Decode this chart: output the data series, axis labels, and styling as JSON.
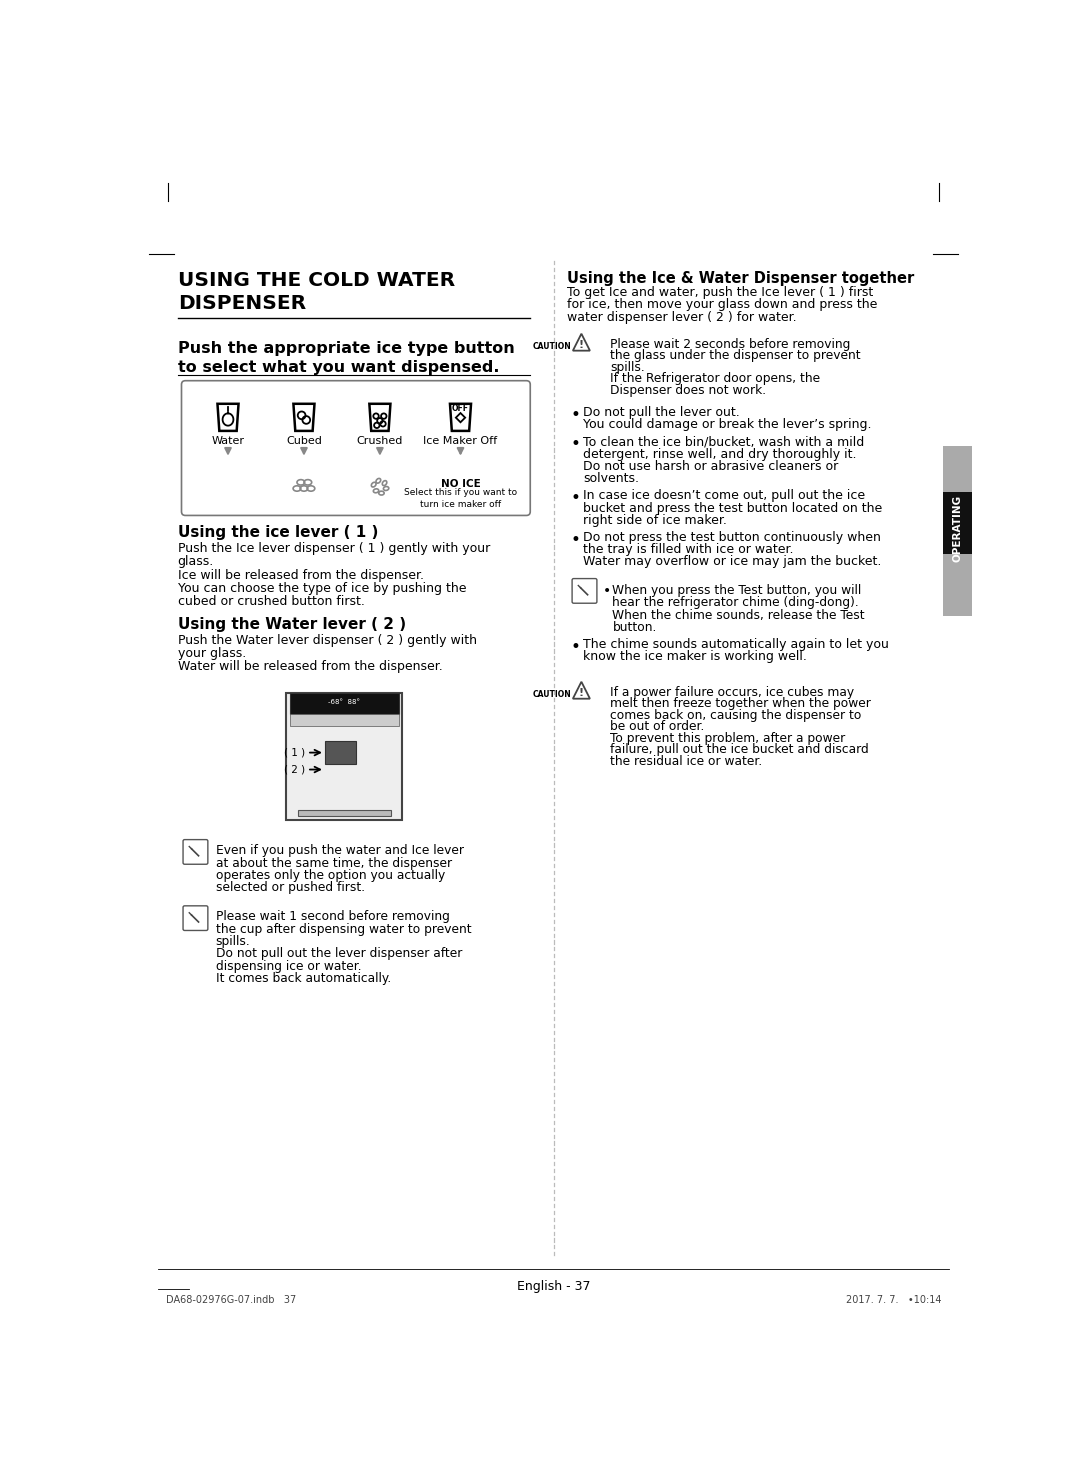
{
  "bg_color": "#ffffff",
  "left_title_line1": "USING THE COLD WATER",
  "left_title_line2": "DISPENSER",
  "push_heading_line1": "Push the appropriate ice type button",
  "push_heading_line2": "to select what you want dispensed.",
  "ice_labels": [
    "Water",
    "Cubed",
    "Crushed",
    "Ice Maker Off"
  ],
  "no_ice_bold": "NO ICE",
  "no_ice_text": "Select this if you want to\nturn ice maker off",
  "ice_lever_heading": "Using the ice lever ( 1 )",
  "ice_lever_body_lines": [
    "Push the Ice lever dispenser ( 1 ) gently with your",
    "glass.",
    "Ice will be released from the dispenser.",
    "You can choose the type of ice by pushing the",
    "cubed or crushed button first."
  ],
  "water_lever_heading": "Using the Water lever ( 2 )",
  "water_lever_body_lines": [
    "Push the Water lever dispenser ( 2 ) gently with",
    "your glass.",
    "Water will be released from the dispenser."
  ],
  "note1_body_lines": [
    "Even if you push the water and Ice lever",
    "at about the same time, the dispenser",
    "operates only the option you actually",
    "selected or pushed first."
  ],
  "note2_body_lines": [
    "Please wait 1 second before removing",
    "the cup after dispensing water to prevent",
    "spills.",
    "Do not pull out the lever dispenser after",
    "dispensing ice or water.",
    "It comes back automatically."
  ],
  "right_title": "Using the Ice & Water Dispenser together",
  "right_title_body_lines": [
    "To get Ice and water, push the Ice lever ( 1 ) first",
    "for ice, then move your glass down and press the",
    "water dispenser lever ( 2 ) for water."
  ],
  "caution1_body_lines": [
    "Please wait 2 seconds before removing",
    "the glass under the dispenser to prevent",
    "spills.",
    "If the Refrigerator door opens, the",
    "Dispenser does not work."
  ],
  "bullet1_lines": [
    "Do not pull the lever out.",
    "You could damage or break the lever’s spring."
  ],
  "bullet2_lines": [
    "To clean the ice bin/bucket, wash with a mild",
    "detergent, rinse well, and dry thoroughly it.",
    "Do not use harsh or abrasive cleaners or",
    "solvents."
  ],
  "bullet3_lines": [
    "In case ice doesn’t come out, pull out the ice",
    "bucket and press the test button located on the",
    "right side of ice maker."
  ],
  "bullet4_lines": [
    "Do not press the test button continuously when",
    "the tray is filled with ice or water.",
    "Water may overflow or ice may jam the bucket."
  ],
  "note3_bullet_lines": [
    "When you press the Test button, you will",
    "hear the refrigerator chime (ding-dong).",
    "When the chime sounds, release the Test",
    "button."
  ],
  "bullet5_lines": [
    "The chime sounds automatically again to let you",
    "know the ice maker is working well."
  ],
  "caution2_body_lines": [
    "If a power failure occurs, ice cubes may",
    "melt then freeze together when the power",
    "comes back on, causing the dispenser to",
    "be out of order.",
    "To prevent this problem, after a power",
    "failure, pull out the ice bucket and discard",
    "the residual ice or water."
  ],
  "operating_label": "OPERATING",
  "page_num": "English - 37",
  "footer_left": "DA68-02976G-07.indb   37",
  "footer_right": "2017. 7. 7.   •10:14"
}
